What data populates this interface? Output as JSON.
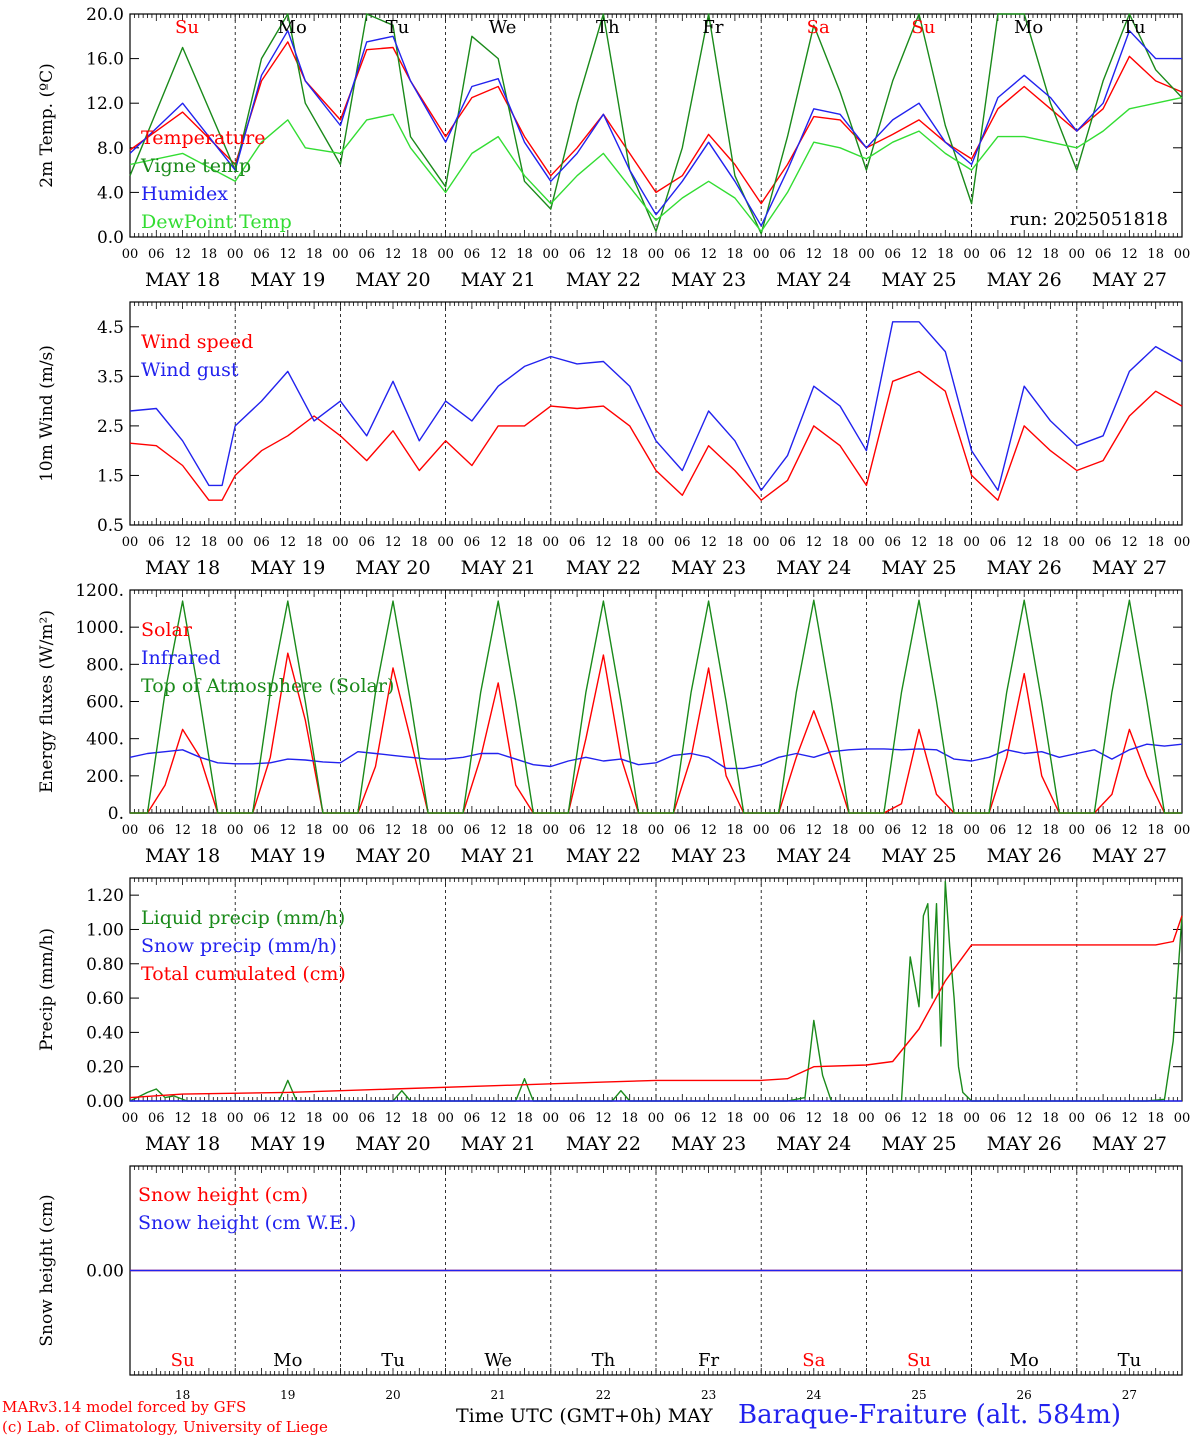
{
  "run_label": "run: 2025051818",
  "axis_hour_labels": [
    "00",
    "06",
    "12",
    "18"
  ],
  "dates": [
    "MAY 18",
    "MAY 19",
    "MAY 20",
    "MAY 21",
    "MAY 22",
    "MAY 23",
    "MAY 24",
    "MAY 25",
    "MAY 26",
    "MAY 27"
  ],
  "weekdays": [
    "Su",
    "Mo",
    "Tu",
    "We",
    "Th",
    "Fr",
    "Sa",
    "Su",
    "Mo",
    "Tu"
  ],
  "weekend_days": [
    0,
    6,
    7
  ],
  "day_numbers": [
    "18",
    "19",
    "20",
    "21",
    "22",
    "23",
    "24",
    "25",
    "26",
    "27"
  ],
  "footer": {
    "credit_line1": "MARv3.14 model forced by GFS",
    "credit_line2": "(c) Lab. of Climatology, University of Liege",
    "x_title": "Time UTC (GMT+0h) MAY",
    "station": "Baraque-Fraiture (alt. 584m)"
  },
  "colors": {
    "red": "#ff0000",
    "blue": "#2222ee",
    "green": "#1a8a1a",
    "lightgreen": "#33dd33",
    "weekday": "#000000"
  },
  "chart_data": [
    {
      "type": "line",
      "ylabel": "2m Temp. (ºC)",
      "ylim": [
        0,
        20
      ],
      "yticks": [
        "0.0",
        "4.0",
        "8.0",
        "12.0",
        "16.0",
        "20.0"
      ],
      "legend_placement": "top-left",
      "x_unit": "hours since 2025-05-18 00 UTC",
      "x": [
        0,
        12,
        24,
        30,
        36,
        40,
        48,
        54,
        60,
        64,
        72,
        78,
        84,
        90,
        96,
        102,
        108,
        114,
        120,
        126,
        132,
        138,
        144,
        150,
        156,
        162,
        168,
        174,
        180,
        186,
        192,
        198,
        204,
        210,
        216,
        222,
        228,
        234,
        240
      ],
      "series": [
        {
          "name": "Temperature",
          "color": "red",
          "values": [
            7.8,
            11.2,
            6.5,
            14.0,
            17.5,
            14.0,
            10.5,
            16.8,
            17.0,
            14.0,
            9.0,
            12.5,
            13.5,
            9.0,
            5.5,
            8.0,
            11.0,
            7.5,
            4.0,
            5.5,
            9.2,
            6.5,
            3.0,
            6.5,
            10.8,
            10.5,
            8.0,
            9.2,
            10.5,
            8.5,
            7.0,
            11.5,
            13.5,
            11.5,
            9.5,
            11.5,
            16.2,
            14.0,
            13.0
          ]
        },
        {
          "name": "Vigne temp",
          "color": "green",
          "values": [
            5.5,
            17.0,
            6.0,
            16.0,
            20.0,
            12.0,
            6.5,
            20.0,
            19.0,
            9.0,
            4.5,
            18.0,
            16.0,
            5.0,
            2.5,
            12.0,
            20.0,
            6.0,
            0.5,
            8.0,
            20.0,
            5.5,
            0.3,
            9.0,
            19.0,
            13.0,
            6.0,
            14.0,
            20.0,
            10.0,
            3.0,
            20.0,
            20.0,
            12.0,
            6.0,
            14.0,
            20.0,
            15.0,
            12.5
          ]
        },
        {
          "name": "Humidex",
          "color": "blue",
          "values": [
            7.5,
            12.0,
            6.0,
            14.5,
            18.5,
            14.0,
            10.0,
            17.5,
            18.0,
            14.0,
            8.5,
            13.5,
            14.2,
            8.5,
            5.0,
            7.5,
            11.0,
            6.0,
            2.0,
            5.0,
            8.5,
            5.0,
            1.0,
            6.0,
            11.5,
            11.0,
            8.0,
            10.5,
            12.0,
            8.5,
            6.5,
            12.5,
            14.5,
            12.5,
            9.5,
            12.0,
            18.5,
            16.0,
            16.0
          ]
        },
        {
          "name": "DewPoint Temp",
          "color": "lightgreen",
          "values": [
            6.5,
            7.5,
            5.0,
            8.5,
            10.5,
            8.0,
            7.5,
            10.5,
            11.0,
            8.0,
            4.0,
            7.5,
            9.0,
            5.5,
            3.0,
            5.5,
            7.5,
            4.5,
            1.5,
            3.5,
            5.0,
            3.5,
            0.5,
            4.0,
            8.5,
            8.0,
            7.0,
            8.5,
            9.5,
            7.5,
            6.0,
            9.0,
            9.0,
            8.5,
            8.0,
            9.5,
            11.5,
            12.0,
            12.5
          ]
        }
      ]
    },
    {
      "type": "line",
      "ylabel": "10m Wind (m/s)",
      "ylim": [
        0.5,
        5.0
      ],
      "yticks": [
        "0.5",
        "1.5",
        "2.5",
        "3.5",
        "4.5"
      ],
      "legend_placement": "top-left",
      "x_unit": "hours since 2025-05-18 00 UTC",
      "x": [
        0,
        6,
        12,
        18,
        21,
        24,
        30,
        36,
        42,
        48,
        54,
        60,
        66,
        72,
        78,
        84,
        90,
        96,
        102,
        108,
        114,
        120,
        126,
        132,
        138,
        144,
        150,
        156,
        162,
        168,
        174,
        180,
        186,
        192,
        198,
        204,
        210,
        216,
        222,
        228,
        234,
        240
      ],
      "series": [
        {
          "name": "Wind speed",
          "color": "red",
          "values": [
            2.15,
            2.1,
            1.7,
            1.0,
            1.0,
            1.5,
            2.0,
            2.3,
            2.7,
            2.3,
            1.8,
            2.4,
            1.6,
            2.2,
            1.7,
            2.5,
            2.5,
            2.9,
            2.85,
            2.9,
            2.5,
            1.6,
            1.1,
            2.1,
            1.6,
            1.0,
            1.4,
            2.5,
            2.1,
            1.3,
            3.4,
            3.6,
            3.2,
            1.5,
            1.0,
            2.5,
            2.0,
            1.6,
            1.8,
            2.7,
            3.2,
            2.9
          ]
        },
        {
          "name": "Wind gust",
          "color": "blue",
          "values": [
            2.8,
            2.85,
            2.2,
            1.3,
            1.3,
            2.5,
            3.0,
            3.6,
            2.6,
            3.0,
            2.3,
            3.4,
            2.2,
            3.0,
            2.6,
            3.3,
            3.7,
            3.9,
            3.75,
            3.8,
            3.3,
            2.2,
            1.6,
            2.8,
            2.2,
            1.2,
            1.9,
            3.3,
            2.9,
            2.0,
            4.6,
            4.6,
            4.0,
            2.0,
            1.2,
            3.3,
            2.6,
            2.1,
            2.3,
            3.6,
            4.1,
            3.8
          ]
        }
      ]
    },
    {
      "type": "line",
      "ylabel": "Energy fluxes (W/m²)",
      "ylim": [
        0,
        1200
      ],
      "yticks": [
        "0.",
        "200.",
        "400.",
        "600.",
        "800.",
        "1000.",
        "1200."
      ],
      "legend_placement": "top-left",
      "x_unit": "hours since 2025-05-18 00 UTC",
      "x": [
        0,
        4,
        8,
        12,
        16,
        20,
        24,
        28,
        32,
        36,
        40,
        44,
        48,
        52,
        56,
        60,
        64,
        68,
        72,
        76,
        80,
        84,
        88,
        92,
        96,
        100,
        104,
        108,
        112,
        116,
        120,
        124,
        128,
        132,
        136,
        140,
        144,
        148,
        152,
        156,
        160,
        164,
        168,
        172,
        176,
        180,
        184,
        188,
        192,
        196,
        200,
        204,
        208,
        212,
        216,
        220,
        224,
        228,
        232,
        236,
        240
      ],
      "series": [
        {
          "name": "Solar",
          "color": "red",
          "values": [
            0,
            0,
            150,
            450,
            300,
            0,
            0,
            0,
            300,
            860,
            500,
            0,
            0,
            0,
            250,
            780,
            400,
            0,
            0,
            0,
            300,
            700,
            150,
            0,
            0,
            0,
            400,
            850,
            300,
            0,
            0,
            0,
            300,
            780,
            200,
            0,
            0,
            0,
            300,
            550,
            300,
            0,
            0,
            0,
            50,
            450,
            100,
            0,
            0,
            0,
            300,
            750,
            200,
            0,
            0,
            0,
            100,
            450,
            200,
            0,
            0
          ]
        },
        {
          "name": "Infrared",
          "color": "blue",
          "values": [
            300,
            320,
            330,
            340,
            300,
            270,
            265,
            265,
            270,
            290,
            285,
            275,
            270,
            330,
            320,
            310,
            300,
            290,
            290,
            300,
            320,
            320,
            290,
            260,
            250,
            280,
            300,
            280,
            290,
            260,
            270,
            310,
            320,
            300,
            240,
            240,
            260,
            300,
            320,
            300,
            330,
            340,
            345,
            345,
            340,
            345,
            340,
            290,
            280,
            300,
            340,
            320,
            330,
            300,
            320,
            340,
            290,
            340,
            370,
            360,
            370
          ]
        },
        {
          "name": "Top of Atmosphere (Solar)",
          "color": "green",
          "values": [
            0,
            0,
            650,
            1140,
            600,
            0,
            0,
            0,
            650,
            1140,
            600,
            0,
            0,
            0,
            650,
            1140,
            600,
            0,
            0,
            0,
            650,
            1140,
            600,
            0,
            0,
            0,
            650,
            1140,
            600,
            0,
            0,
            0,
            650,
            1140,
            600,
            0,
            0,
            0,
            650,
            1145,
            600,
            0,
            0,
            0,
            650,
            1145,
            600,
            0,
            0,
            0,
            650,
            1145,
            600,
            0,
            0,
            0,
            650,
            1145,
            600,
            0,
            0
          ]
        }
      ]
    },
    {
      "type": "line",
      "ylabel": "Precip (mm/h)",
      "ylim": [
        0,
        1.3
      ],
      "yticks": [
        "0.00",
        "0.20",
        "0.40",
        "0.60",
        "0.80",
        "1.00",
        "1.20"
      ],
      "legend_placement": "top-left",
      "x_unit": "hours since 2025-05-18 00 UTC",
      "series": [
        {
          "name": "Liquid precip (mm/h)",
          "color": "green",
          "x": [
            0,
            4,
            6,
            8,
            10,
            13,
            24,
            34,
            36,
            38,
            60,
            62,
            64,
            80,
            88,
            90,
            92,
            96,
            110,
            112,
            114,
            150,
            154,
            156,
            158,
            160,
            176,
            178,
            180,
            181,
            182,
            183,
            184,
            185,
            186,
            187,
            188,
            189,
            190,
            192,
            196,
            232,
            236,
            238,
            240
          ],
          "values": [
            0,
            0.05,
            0.07,
            0.02,
            0.03,
            0,
            0,
            0,
            0.12,
            0,
            0,
            0.06,
            0,
            0,
            0,
            0.13,
            0,
            0,
            0,
            0.06,
            0,
            0,
            0.02,
            0.47,
            0.15,
            0,
            0,
            0.84,
            0.55,
            1.08,
            1.15,
            0.6,
            1.15,
            0.32,
            1.28,
            0.9,
            0.6,
            0.2,
            0.05,
            0,
            0,
            0,
            0.01,
            0.35,
            1.08
          ]
        },
        {
          "name": "Snow precip (mm/h)",
          "color": "blue",
          "x": [
            0,
            240
          ],
          "values": [
            0,
            0
          ]
        },
        {
          "name": "Total cumulated (cm)",
          "color": "red",
          "x": [
            0,
            12,
            36,
            48,
            60,
            84,
            96,
            108,
            120,
            144,
            150,
            156,
            168,
            174,
            180,
            186,
            192,
            204,
            216,
            228,
            234,
            238,
            240
          ],
          "values": [
            0.02,
            0.04,
            0.05,
            0.06,
            0.07,
            0.09,
            0.1,
            0.11,
            0.12,
            0.12,
            0.13,
            0.2,
            0.21,
            0.23,
            0.42,
            0.7,
            0.91,
            0.91,
            0.91,
            0.91,
            0.91,
            0.93,
            1.08
          ]
        }
      ]
    },
    {
      "type": "line",
      "ylabel": "Snow height (cm)",
      "ylim": [
        -1,
        1
      ],
      "yticks": [
        "0.00"
      ],
      "legend_placement": "top-left",
      "x_unit": "hours since 2025-05-18 00 UTC",
      "x": [
        0,
        240
      ],
      "series": [
        {
          "name": "Snow height (cm)",
          "color": "red",
          "values": [
            0,
            0
          ]
        },
        {
          "name": "Snow height (cm W.E.)",
          "color": "blue",
          "values": [
            0,
            0
          ]
        }
      ]
    }
  ]
}
